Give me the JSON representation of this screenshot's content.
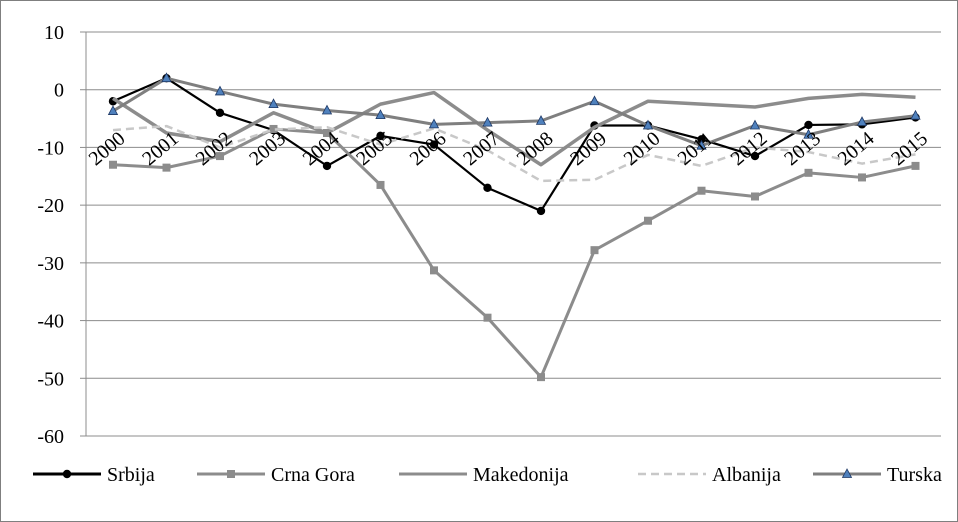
{
  "chart_data": {
    "type": "line",
    "title": "",
    "xlabel": "",
    "ylabel": "",
    "ylim": [
      -60,
      10
    ],
    "yticks": [
      "10",
      "0",
      "-10",
      "-20",
      "-30",
      "-40",
      "-50",
      "-60"
    ],
    "categories": [
      "2000",
      "2001",
      "2002",
      "2003",
      "2004",
      "2005",
      "2006",
      "2007",
      "2008",
      "2009",
      "2010",
      "2011",
      "2012",
      "2013",
      "2014",
      "2015"
    ],
    "grid": "horizontal",
    "legend_position": "bottom",
    "series": [
      {
        "name": "Srbija",
        "color": "#000000",
        "style": "solid-circle-markers",
        "values": [
          -2,
          2,
          -4,
          -7,
          -13.2,
          -8,
          -9.5,
          -17,
          -21,
          -6.2,
          -6.2,
          -8.6,
          -11.5,
          -6.1,
          -6,
          -4.8
        ]
      },
      {
        "name": "Crna Gora",
        "color": "#8c8c8c",
        "style": "solid-square-markers",
        "values": [
          -13,
          -13.5,
          -11.5,
          -6.8,
          -7.5,
          -16.5,
          -31.3,
          -39.5,
          -49.8,
          -27.8,
          -22.7,
          -17.5,
          -18.5,
          -14.4,
          -15.2,
          -13.2
        ]
      },
      {
        "name": "Makedonija",
        "color": "#8c8c8c",
        "style": "solid-thick",
        "values": [
          -1.5,
          -7.5,
          -9,
          -4,
          -7.5,
          -2.5,
          -0.5,
          -7,
          -13,
          -6.5,
          -2,
          -2.5,
          -3,
          -1.5,
          -0.8,
          -1.3
        ]
      },
      {
        "name": "Albanija",
        "color": "#c8c8c8",
        "style": "dashed",
        "values": [
          -7,
          -6.3,
          -10,
          -6.9,
          -6.5,
          -9.5,
          -6.7,
          -10.5,
          -15.8,
          -15.6,
          -11.3,
          -13.2,
          -10,
          -10.8,
          -12.8,
          -11.2
        ]
      },
      {
        "name": "Turska",
        "color": "#7f7f7f",
        "style": "solid-triangle-markers",
        "values": [
          -3.7,
          2,
          -0.3,
          -2.5,
          -3.6,
          -4.4,
          -6,
          -5.7,
          -5.4,
          -2,
          -6.2,
          -9.7,
          -6.2,
          -7.8,
          -5.6,
          -4.5
        ]
      }
    ]
  }
}
